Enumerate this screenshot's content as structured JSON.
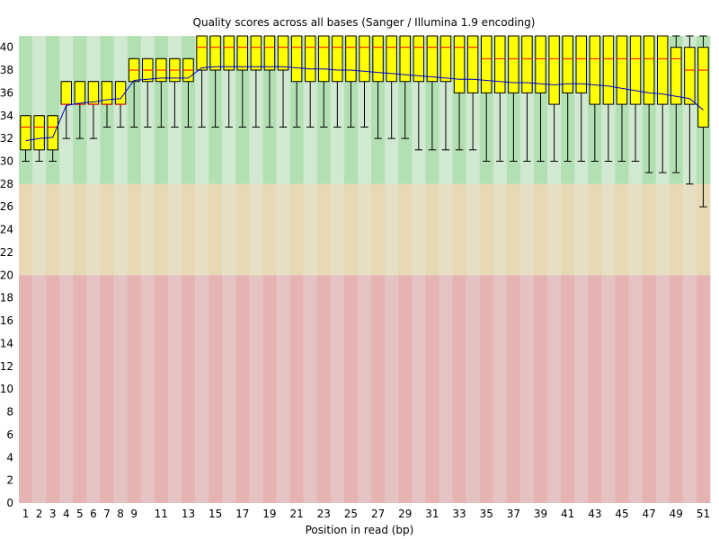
{
  "chart_data": {
    "type": "box",
    "title": "Quality scores across all bases (Sanger / Illumina 1.9 encoding)",
    "xlabel": "Position in read (bp)",
    "ylabel": "",
    "ylim": [
      0,
      41
    ],
    "y_ticks": [
      0,
      2,
      4,
      6,
      8,
      10,
      12,
      14,
      16,
      18,
      20,
      22,
      24,
      26,
      28,
      30,
      32,
      34,
      36,
      38,
      40
    ],
    "x_tick_labels": [
      1,
      2,
      3,
      4,
      5,
      6,
      7,
      8,
      9,
      11,
      13,
      15,
      17,
      19,
      21,
      23,
      25,
      27,
      29,
      31,
      33,
      35,
      37,
      39,
      41,
      43,
      45,
      47,
      49,
      51
    ],
    "quality_zones": [
      {
        "name": "good",
        "from": 28,
        "to": 41,
        "color_a": "#b3e0b3",
        "color_b": "#d0e9d0"
      },
      {
        "name": "reasonable",
        "from": 20,
        "to": 28,
        "color_a": "#e6d9b3",
        "color_b": "#e6dfc5"
      },
      {
        "name": "poor",
        "from": 0,
        "to": 20,
        "color_a": "#e6b3b3",
        "color_b": "#e6c3c3"
      }
    ],
    "colors": {
      "box": "#ffff00",
      "median": "#ff0000",
      "mean": "#0000cc",
      "whisker": "#000000"
    },
    "positions": [
      1,
      2,
      3,
      4,
      5,
      6,
      7,
      8,
      9,
      10,
      11,
      12,
      13,
      14,
      15,
      16,
      17,
      18,
      19,
      20,
      21,
      22,
      23,
      24,
      25,
      26,
      27,
      28,
      29,
      30,
      31,
      32,
      33,
      34,
      35,
      36,
      37,
      38,
      39,
      40,
      41,
      42,
      43,
      44,
      45,
      46,
      47,
      48,
      49,
      50,
      51
    ],
    "q1": [
      31,
      31,
      31,
      35,
      35,
      35,
      35,
      35,
      37,
      37,
      37,
      37,
      37,
      38,
      38,
      38,
      38,
      38,
      38,
      38,
      37,
      37,
      37,
      37,
      37,
      37,
      37,
      37,
      37,
      37,
      37,
      37,
      36,
      36,
      36,
      36,
      36,
      36,
      36,
      35,
      36,
      36,
      35,
      35,
      35,
      35,
      35,
      35,
      35,
      35,
      33
    ],
    "median": [
      33,
      33,
      33,
      35,
      35,
      35,
      35,
      35,
      38,
      38,
      38,
      38,
      38,
      40,
      40,
      40,
      40,
      40,
      40,
      40,
      40,
      40,
      40,
      40,
      40,
      40,
      40,
      40,
      40,
      40,
      40,
      40,
      40,
      40,
      39,
      39,
      39,
      39,
      39,
      39,
      39,
      39,
      39,
      39,
      39,
      39,
      39,
      39,
      39,
      38,
      38
    ],
    "q3": [
      34,
      34,
      34,
      37,
      37,
      37,
      37,
      37,
      39,
      39,
      39,
      39,
      39,
      41,
      41,
      41,
      41,
      41,
      41,
      41,
      41,
      41,
      41,
      41,
      41,
      41,
      41,
      41,
      41,
      41,
      41,
      41,
      41,
      41,
      41,
      41,
      41,
      41,
      41,
      41,
      41,
      41,
      41,
      41,
      41,
      41,
      41,
      41,
      40,
      40,
      40
    ],
    "whisker_low": [
      30,
      30,
      30,
      32,
      32,
      32,
      33,
      33,
      33,
      33,
      33,
      33,
      33,
      33,
      33,
      33,
      33,
      33,
      33,
      33,
      33,
      33,
      33,
      33,
      33,
      33,
      32,
      32,
      32,
      31,
      31,
      31,
      31,
      31,
      30,
      30,
      30,
      30,
      30,
      30,
      30,
      30,
      30,
      30,
      30,
      30,
      29,
      29,
      29,
      28,
      26
    ],
    "whisker_high": [
      34,
      34,
      34,
      37,
      37,
      37,
      37,
      37,
      39,
      39,
      39,
      39,
      39,
      41,
      41,
      41,
      41,
      41,
      41,
      41,
      41,
      41,
      41,
      41,
      41,
      41,
      41,
      41,
      41,
      41,
      41,
      41,
      41,
      41,
      41,
      41,
      41,
      41,
      41,
      41,
      41,
      41,
      41,
      41,
      41,
      41,
      41,
      41,
      41,
      41,
      41
    ],
    "mean": [
      31.8,
      32.0,
      32.1,
      34.9,
      35.1,
      35.2,
      35.4,
      35.5,
      37.1,
      37.2,
      37.3,
      37.3,
      37.3,
      38.2,
      38.3,
      38.3,
      38.3,
      38.3,
      38.3,
      38.3,
      38.2,
      38.1,
      38.1,
      38.0,
      38.0,
      37.9,
      37.8,
      37.7,
      37.6,
      37.5,
      37.4,
      37.3,
      37.2,
      37.2,
      37.1,
      37.0,
      36.9,
      36.9,
      36.8,
      36.7,
      36.8,
      36.8,
      36.7,
      36.6,
      36.4,
      36.2,
      36.0,
      35.9,
      35.7,
      35.5,
      34.5
    ]
  }
}
